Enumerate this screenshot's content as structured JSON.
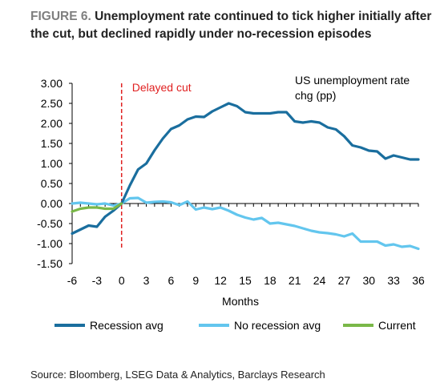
{
  "header": {
    "figure_label": "FIGURE 6.",
    "title": "Unemployment rate continued to tick higher initially after the cut, but declined rapidly under no-recession episodes"
  },
  "source": "Source: Bloomberg, LSEG Data & Analytics, Barclays Research",
  "colors": {
    "recession": "#1a6e9e",
    "no_recession": "#63c6ee",
    "current": "#7ab848",
    "cut_line": "#e02020",
    "annotation": "#e02020"
  },
  "chart_data": {
    "type": "line",
    "title": "",
    "xlabel": "Months",
    "ylabel": "",
    "chart_label": "US unemployment rate chg (pp)",
    "xlim": [
      -6,
      36
    ],
    "ylim": [
      -1.5,
      3.0
    ],
    "x_ticks": [
      -6,
      -3,
      0,
      3,
      6,
      9,
      12,
      15,
      18,
      21,
      24,
      27,
      30,
      33,
      36
    ],
    "y_ticks": [
      3.0,
      2.5,
      2.0,
      1.5,
      1.0,
      0.5,
      0.0,
      -0.5,
      -1.0,
      -1.5
    ],
    "x_tick_labels": [
      "-6",
      "-3",
      "0",
      "3",
      "6",
      "9",
      "12",
      "15",
      "18",
      "21",
      "24",
      "27",
      "30",
      "33",
      "36"
    ],
    "y_tick_labels": [
      "3.00",
      "2.50",
      "2.00",
      "1.50",
      "1.00",
      "0.50",
      "0.00",
      "-0.50",
      "-1.00",
      "-1.50"
    ],
    "annotation": {
      "text": "Delayed cut",
      "x": 0
    },
    "grid": false,
    "legend_position": "bottom",
    "series": [
      {
        "name": "Recession avg",
        "x": [
          -6,
          -5,
          -4,
          -3,
          -2,
          -1,
          0,
          1,
          2,
          3,
          4,
          5,
          6,
          7,
          8,
          9,
          10,
          11,
          12,
          13,
          14,
          15,
          16,
          17,
          18,
          19,
          20,
          21,
          22,
          23,
          24,
          25,
          26,
          27,
          28,
          29,
          30,
          31,
          32,
          33,
          34,
          35,
          36
        ],
        "values": [
          -0.75,
          -0.65,
          -0.55,
          -0.58,
          -0.33,
          -0.18,
          0.0,
          0.45,
          0.85,
          1.0,
          1.33,
          1.62,
          1.86,
          1.95,
          2.1,
          2.17,
          2.16,
          2.3,
          2.4,
          2.5,
          2.43,
          2.28,
          2.25,
          2.25,
          2.25,
          2.28,
          2.28,
          2.05,
          2.02,
          2.05,
          2.02,
          1.9,
          1.85,
          1.68,
          1.45,
          1.4,
          1.32,
          1.3,
          1.12,
          1.2,
          1.15,
          1.1,
          1.1
        ]
      },
      {
        "name": "No recession avg",
        "x": [
          -6,
          -5,
          -4,
          -3,
          -2,
          -1,
          0,
          1,
          2,
          3,
          4,
          5,
          6,
          7,
          8,
          9,
          10,
          11,
          12,
          13,
          14,
          15,
          16,
          17,
          18,
          19,
          20,
          21,
          22,
          23,
          24,
          25,
          26,
          27,
          28,
          29,
          30,
          31,
          32,
          33,
          34,
          35,
          36
        ],
        "values": [
          0.0,
          0.02,
          0.0,
          -0.02,
          0.0,
          -0.05,
          0.0,
          0.13,
          0.14,
          0.02,
          0.04,
          0.05,
          0.03,
          -0.04,
          0.05,
          -0.15,
          -0.1,
          -0.14,
          -0.1,
          -0.18,
          -0.28,
          -0.35,
          -0.4,
          -0.36,
          -0.5,
          -0.48,
          -0.52,
          -0.56,
          -0.62,
          -0.68,
          -0.72,
          -0.74,
          -0.77,
          -0.82,
          -0.75,
          -0.95,
          -0.95,
          -0.95,
          -1.05,
          -1.02,
          -1.08,
          -1.06,
          -1.13
        ]
      },
      {
        "name": "Current",
        "x": [
          -6,
          -5,
          -4,
          -3,
          -2,
          -1,
          0
        ],
        "values": [
          -0.2,
          -0.13,
          -0.1,
          -0.1,
          -0.13,
          -0.13,
          0.0
        ]
      }
    ]
  }
}
